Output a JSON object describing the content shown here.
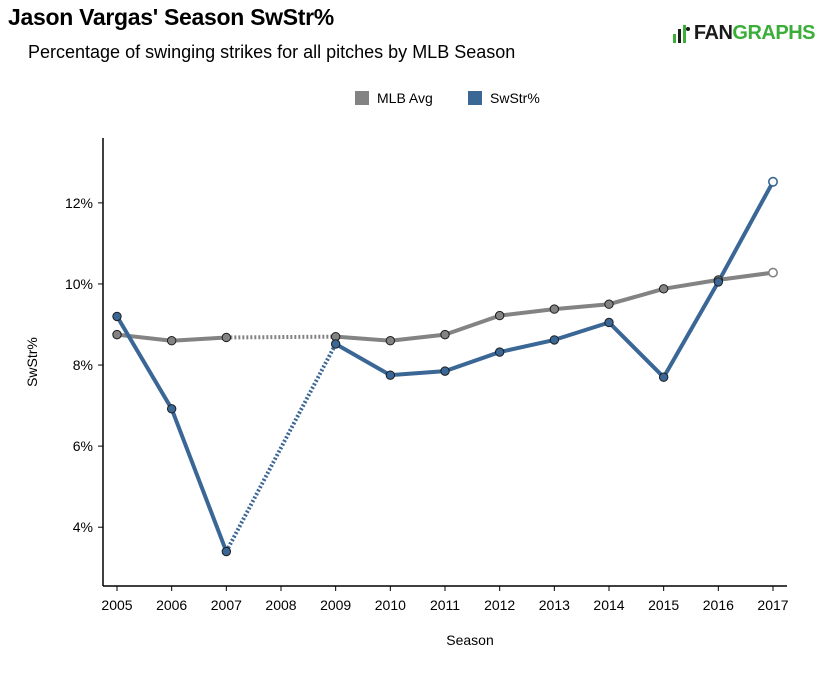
{
  "chart_data": {
    "type": "line",
    "title": "Jason Vargas' Season SwStr%",
    "subtitle": "Percentage of swinging strikes for all pitches by MLB Season",
    "xlabel": "Season",
    "ylabel": "SwStr%",
    "categories": [
      "2005",
      "2006",
      "2007",
      "2008",
      "2009",
      "2010",
      "2011",
      "2012",
      "2013",
      "2014",
      "2015",
      "2016",
      "2017"
    ],
    "y_ticks": [
      "4%",
      "6%",
      "8%",
      "10%",
      "12%"
    ],
    "y_tick_values": [
      4,
      6,
      8,
      10,
      12
    ],
    "ylim": [
      2.55,
      13.6
    ],
    "legend_position": "top-center",
    "grid": false,
    "series": [
      {
        "name": "MLB Avg",
        "color": "#838383",
        "values": [
          8.75,
          8.6,
          8.68,
          null,
          8.7,
          8.6,
          8.75,
          9.22,
          9.38,
          9.5,
          9.88,
          10.1,
          10.28
        ],
        "bridge_gaps": true,
        "last_open": true
      },
      {
        "name": "SwStr%",
        "color": "#3a6796",
        "values": [
          9.2,
          6.92,
          3.4,
          null,
          8.52,
          7.75,
          7.85,
          8.32,
          8.62,
          9.05,
          7.7,
          10.05,
          12.52
        ],
        "bridge_gaps": true,
        "last_open": true
      }
    ]
  },
  "brand": {
    "fan": "FAN",
    "graphs": "GRAPHS"
  }
}
